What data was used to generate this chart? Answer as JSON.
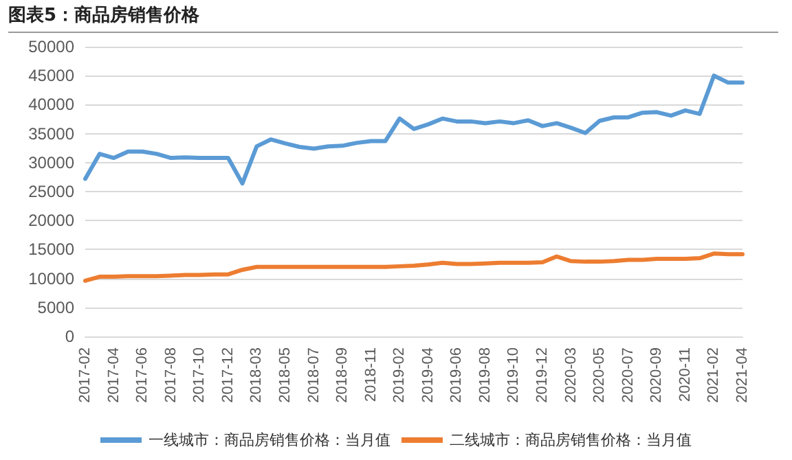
{
  "chart_data": {
    "type": "line",
    "title": "图表5：商品房销售价格",
    "categories": [
      "2017-02",
      null,
      "2017-04",
      null,
      "2017-06",
      null,
      "2017-08",
      null,
      "2017-10",
      null,
      "2017-12",
      null,
      "2018-03",
      null,
      "2018-05",
      null,
      "2018-07",
      null,
      "2018-09",
      null,
      "2018-11",
      null,
      "2019-02",
      null,
      "2019-04",
      null,
      "2019-06",
      null,
      "2019-08",
      null,
      "2019-10",
      null,
      "2019-12",
      null,
      "2020-03",
      null,
      "2020-05",
      null,
      "2020-07",
      null,
      "2020-09",
      null,
      "2020-11",
      null,
      "2021-02",
      null,
      "2021-04"
    ],
    "series": [
      {
        "name": "一线城市：商品房销售价格：当月值",
        "color": "#5b9bd5",
        "values": [
          27200,
          31500,
          30800,
          31900,
          31900,
          31500,
          30800,
          30900,
          30800,
          30800,
          30800,
          26400,
          32800,
          34000,
          33300,
          32700,
          32400,
          32800,
          32900,
          33400,
          33700,
          33700,
          37600,
          35800,
          36600,
          37600,
          37100,
          37100,
          36800,
          37100,
          36800,
          37300,
          36300,
          36800,
          36000,
          35100,
          37200,
          37800,
          37800,
          38600,
          38700,
          38100,
          39000,
          38400,
          45000,
          43800,
          43800
        ]
      },
      {
        "name": "二线城市：商品房销售价格：当月值",
        "color": "#ed7d31",
        "values": [
          9600,
          10300,
          10300,
          10400,
          10400,
          10400,
          10500,
          10600,
          10600,
          10700,
          10700,
          11500,
          12000,
          12000,
          12000,
          12000,
          12000,
          12000,
          12000,
          12000,
          12000,
          12000,
          12100,
          12200,
          12400,
          12700,
          12500,
          12500,
          12600,
          12700,
          12700,
          12700,
          12800,
          13800,
          13000,
          12900,
          12900,
          13000,
          13200,
          13200,
          13400,
          13400,
          13400,
          13500,
          14300,
          14200,
          14200
        ]
      }
    ],
    "ylim": [
      0,
      50000
    ],
    "yticks": [
      0,
      5000,
      10000,
      15000,
      20000,
      25000,
      30000,
      35000,
      40000,
      45000,
      50000
    ],
    "grid": "y",
    "legend": "bottom",
    "marker": "none",
    "line_style": "solid"
  }
}
